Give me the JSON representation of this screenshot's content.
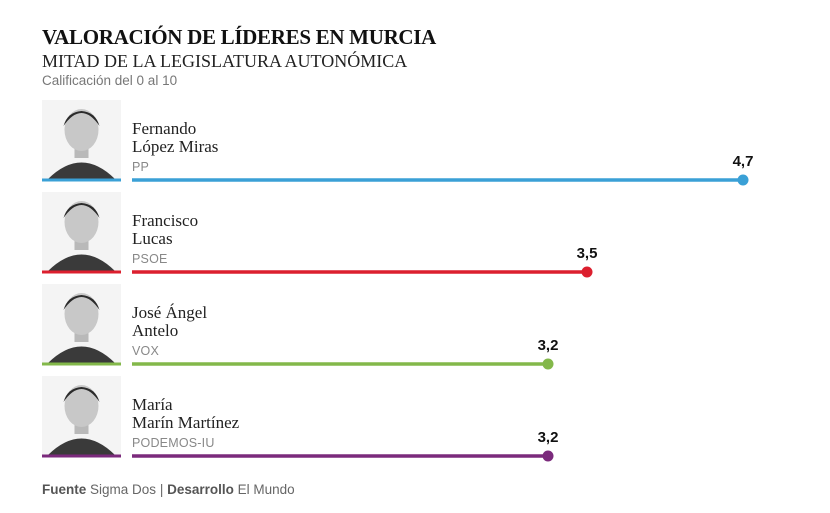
{
  "header": {
    "title": "VALORACIÓN DE LÍDERES EN MURCIA",
    "subtitle": "MITAD DE LA LEGISLATURA AUTONÓMICA",
    "note": "Calificación del 0 al 10"
  },
  "footer": {
    "source_label": "Fuente",
    "source_value": "Sigma Dos",
    "separator": "|",
    "dev_label": "Desarrollo",
    "dev_value": "El Mundo"
  },
  "chart_data": {
    "type": "bar",
    "orientation": "horizontal",
    "title": "VALORACIÓN DE LÍDERES EN MURCIA",
    "subtitle": "MITAD DE LA LEGISLATURA AUTONÓMICA",
    "ylabel": "Calificación del 0 al 10",
    "xlim": [
      0,
      10
    ],
    "grid": false,
    "rows": [
      {
        "name_line1": "Fernando",
        "name_line2": "López Miras",
        "party": "PP",
        "value": 4.7,
        "value_label": "4,7",
        "color": "#3aa0d6"
      },
      {
        "name_line1": "Francisco",
        "name_line2": "Lucas",
        "party": "PSOE",
        "value": 3.5,
        "value_label": "3,5",
        "color": "#dc1f2e"
      },
      {
        "name_line1": "José Ángel",
        "name_line2": "Antelo",
        "party": "VOX",
        "value": 3.2,
        "value_label": "3,2",
        "color": "#83b84a"
      },
      {
        "name_line1": "María",
        "name_line2": "Marín Martínez",
        "party": "PODEMOS-IU",
        "value": 3.2,
        "value_label": "3,2",
        "color": "#7b2a7c"
      }
    ]
  }
}
